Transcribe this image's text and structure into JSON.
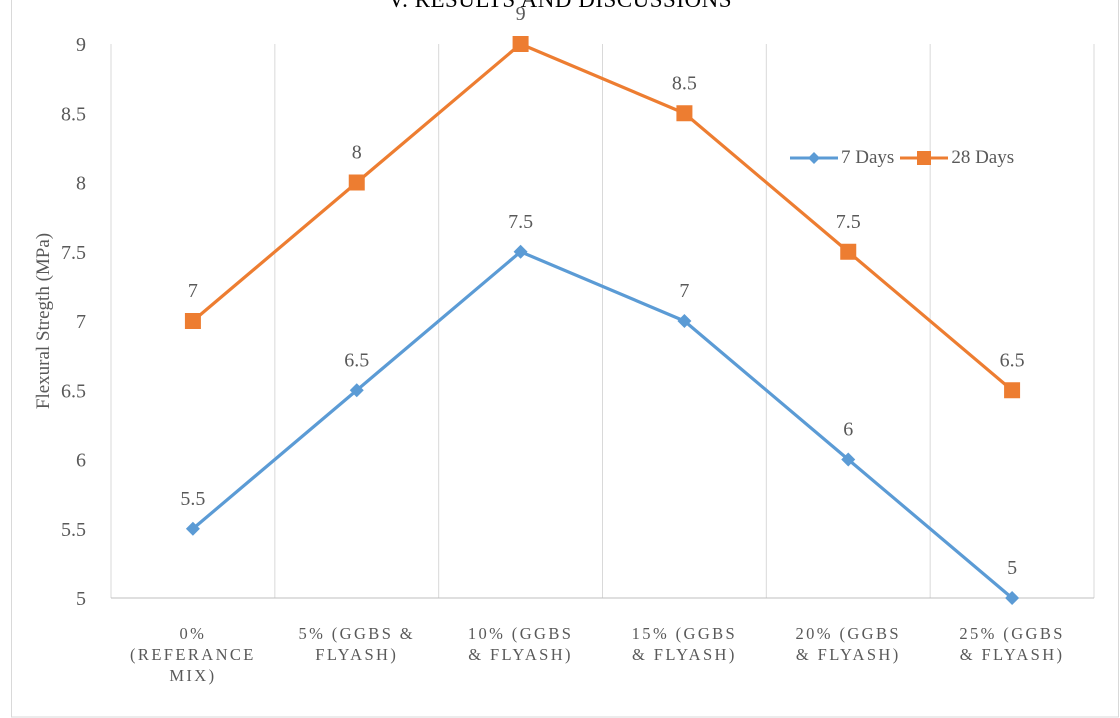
{
  "heading_fragment": "V.  RESULTS AND DISCUSSIONS",
  "chart_data": {
    "type": "line",
    "title": "",
    "xlabel": "",
    "ylabel": "Flexural Stregth (MPa)",
    "categories": [
      "0%\n(REFERANCE\nMIX)",
      "5% (GGBS &\nFLYASH)",
      "10% (GGBS\n& FLYASH)",
      "15% (GGBS\n& FLYASH)",
      "20% (GGBS\n& FLYASH)",
      "25% (GGBS\n& FLYASH)"
    ],
    "ylim": [
      5,
      9
    ],
    "yticks": [
      "5",
      "5.5",
      "6",
      "6.5",
      "7",
      "7.5",
      "8",
      "8.5",
      "9"
    ],
    "grid": "vertical",
    "legend_position": "top-right",
    "series": [
      {
        "name": "7 Days",
        "color": "#5B9BD5",
        "marker": "diamond",
        "values": [
          5.5,
          6.5,
          7.5,
          7,
          6,
          5
        ],
        "labels": [
          "5.5",
          "6.5",
          "7.5",
          "7",
          "6",
          "5"
        ]
      },
      {
        "name": "28 Days",
        "color": "#ED7D31",
        "marker": "square",
        "values": [
          7,
          8,
          9,
          8.5,
          7.5,
          6.5
        ],
        "labels": [
          "7",
          "8",
          "9",
          "8.5",
          "7.5",
          "6.5"
        ]
      }
    ]
  }
}
